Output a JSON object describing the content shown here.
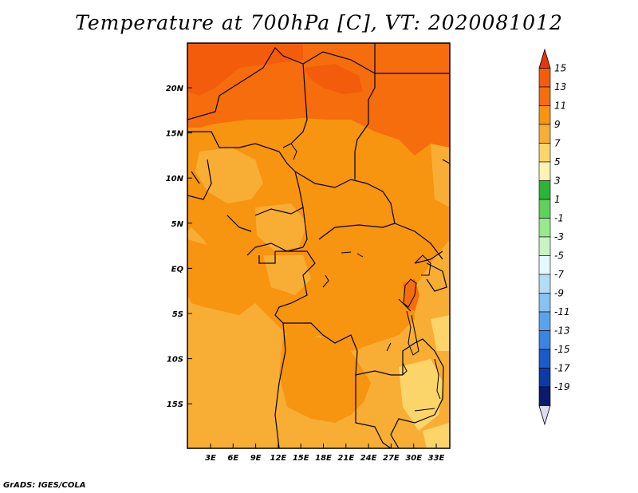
{
  "title": "Temperature at 700hPa [C], VT: 2020081012",
  "credit": "GrADS: IGES/COLA",
  "map": {
    "lat_labels": [
      "20N",
      "15N",
      "10N",
      "5N",
      "EQ",
      "5S",
      "10S",
      "15S"
    ],
    "lon_labels": [
      "3E",
      "6E",
      "9E",
      "12E",
      "15E",
      "18E",
      "21E",
      "24E",
      "27E",
      "30E",
      "33E"
    ]
  },
  "legend": {
    "labels": [
      "15",
      "13",
      "11",
      "9",
      "7",
      "5",
      "3",
      "1",
      "-1",
      "-3",
      "-5",
      "-7",
      "-9",
      "-11",
      "-13",
      "-15",
      "-17",
      "-19"
    ],
    "colors": [
      "#e8370a",
      "#f35c0b",
      "#f66d0d",
      "#f79410",
      "#f8ae34",
      "#fbd56a",
      "#fcf3b0",
      "#29b637",
      "#5dd35b",
      "#97e98e",
      "#c7f4c2",
      "#e5f8fb",
      "#b4dcf7",
      "#86c2f2",
      "#5aa3eb",
      "#3a84e3",
      "#1a5bcc",
      "#0c3aa8",
      "#0a1a6e",
      "#dcdcf3"
    ]
  },
  "colors": {
    "border": "#000000",
    "river": "#000000"
  }
}
